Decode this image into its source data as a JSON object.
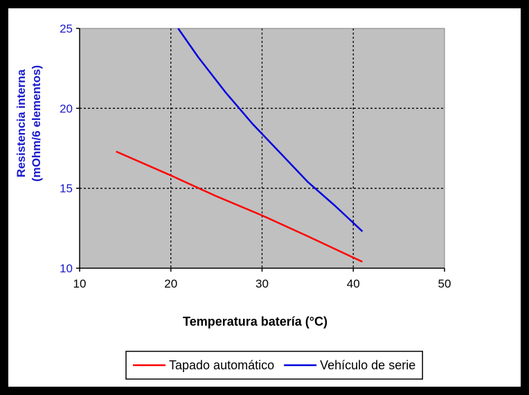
{
  "chart_data": {
    "type": "line",
    "title": "",
    "xlabel": "Temperatura batería (°C)",
    "ylabel_line1": "Resistencia interna",
    "ylabel_line2": "(mOhm/6 elementos)",
    "xlim": [
      10,
      50
    ],
    "ylim": [
      10,
      25
    ],
    "x_ticks": [
      10,
      20,
      30,
      40,
      50
    ],
    "y_ticks": [
      10,
      15,
      20,
      25
    ],
    "x_tick_labels": [
      "10",
      "20",
      "30",
      "40",
      "50"
    ],
    "y_tick_labels": [
      "10",
      "15",
      "20",
      "25"
    ],
    "grid": true,
    "plot_background": "#c0c0c0",
    "legend_position": "bottom-right",
    "series": [
      {
        "name": "Tapado automático",
        "color": "#ff0000",
        "points": [
          [
            14,
            17.3
          ],
          [
            20,
            15.8
          ],
          [
            25,
            14.5
          ],
          [
            30,
            13.3
          ],
          [
            35,
            12.0
          ],
          [
            41,
            10.4
          ]
        ]
      },
      {
        "name": "Vehículo de serie",
        "color": "#0000dd",
        "points": [
          [
            20.8,
            25.0
          ],
          [
            23,
            23.2
          ],
          [
            26,
            21.0
          ],
          [
            29,
            19.0
          ],
          [
            32,
            17.2
          ],
          [
            35,
            15.4
          ],
          [
            38,
            13.9
          ],
          [
            41,
            12.3
          ]
        ]
      }
    ]
  }
}
